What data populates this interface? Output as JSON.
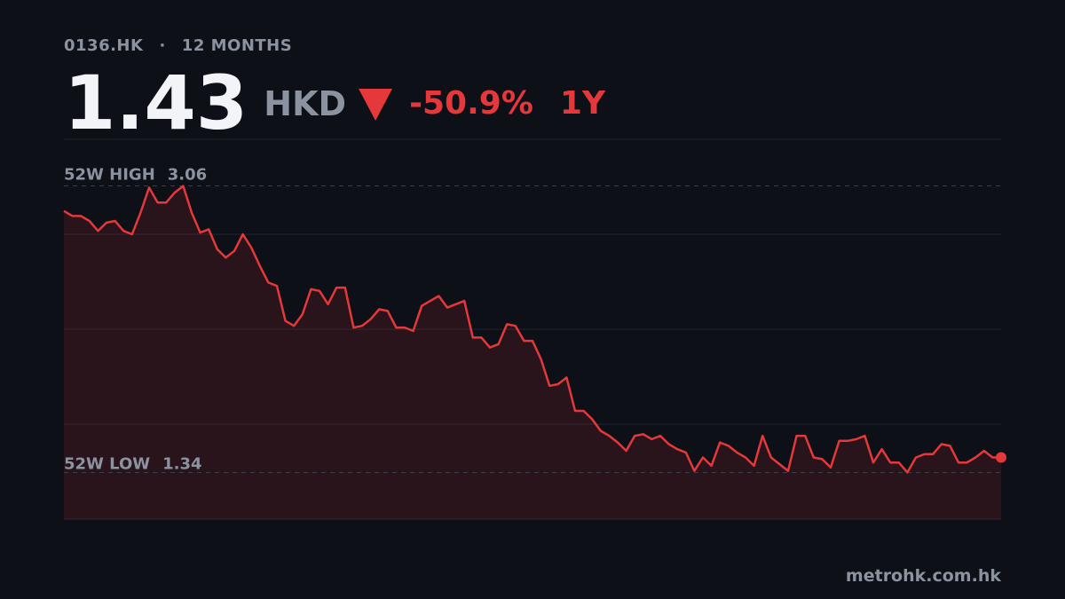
{
  "chart_data": {
    "type": "area",
    "ticker": "0136.HK",
    "separator": "·",
    "period": "12 MONTHS",
    "price": "1.43",
    "currency": "HKD",
    "change": "-50.9%",
    "range": "1Y",
    "high_label": "52W HIGH",
    "high": 3.06,
    "low_label": "52W LOW",
    "low": 1.34,
    "source": "metrohk.com.hk",
    "color": "#e5383b",
    "grid": true,
    "ylim": [
      1.06,
      3.34
    ],
    "values": [
      2.91,
      2.88,
      2.88,
      2.85,
      2.79,
      2.84,
      2.85,
      2.79,
      2.77,
      2.9,
      3.05,
      2.96,
      2.96,
      3.02,
      3.06,
      2.9,
      2.78,
      2.8,
      2.68,
      2.63,
      2.67,
      2.77,
      2.69,
      2.58,
      2.48,
      2.46,
      2.25,
      2.22,
      2.29,
      2.44,
      2.43,
      2.35,
      2.45,
      2.45,
      2.21,
      2.22,
      2.26,
      2.32,
      2.31,
      2.21,
      2.21,
      2.19,
      2.34,
      2.37,
      2.4,
      2.33,
      2.35,
      2.37,
      2.15,
      2.15,
      2.09,
      2.11,
      2.23,
      2.22,
      2.13,
      2.13,
      2.02,
      1.86,
      1.87,
      1.91,
      1.71,
      1.71,
      1.66,
      1.59,
      1.56,
      1.52,
      1.47,
      1.56,
      1.57,
      1.54,
      1.56,
      1.51,
      1.48,
      1.46,
      1.35,
      1.43,
      1.38,
      1.52,
      1.5,
      1.46,
      1.43,
      1.38,
      1.56,
      1.43,
      1.39,
      1.35,
      1.56,
      1.56,
      1.43,
      1.42,
      1.37,
      1.53,
      1.53,
      1.54,
      1.56,
      1.4,
      1.48,
      1.4,
      1.4,
      1.34,
      1.43,
      1.45,
      1.45,
      1.51,
      1.5,
      1.4,
      1.4,
      1.43,
      1.47,
      1.43,
      1.43
    ]
  }
}
